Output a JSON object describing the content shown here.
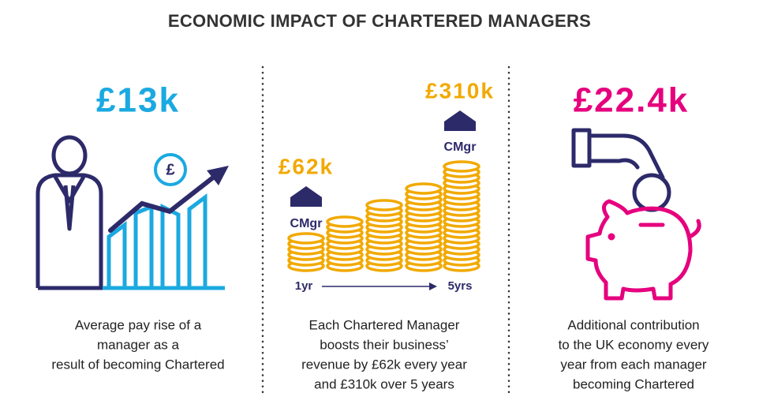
{
  "title": "ECONOMIC IMPACT OF CHARTERED MANAGERS",
  "panels": [
    {
      "headline": "£13k",
      "description": [
        "Average pay rise of a",
        "manager as a",
        "result of becoming Chartered"
      ]
    },
    {
      "labels": {
        "low_value": "£62k",
        "low_badge": "CMgr",
        "high_value": "£310k",
        "high_badge": "CMgr",
        "start": "1yr",
        "end": "5yrs"
      },
      "description": [
        "Each Chartered Manager",
        "boosts their business’",
        "revenue by £62k every year",
        "and £310k over 5 years"
      ]
    },
    {
      "headline": "£22.4k",
      "description": [
        "Additional contribution",
        "to the UK economy every",
        "year from each manager",
        "becoming Chartered"
      ]
    }
  ]
}
